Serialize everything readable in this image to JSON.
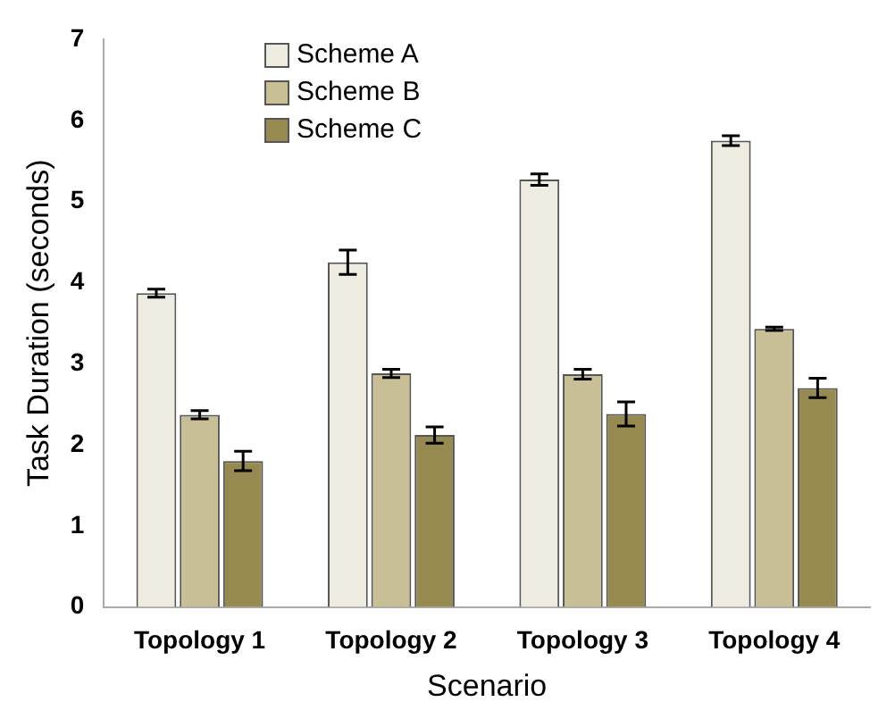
{
  "chart_data": {
    "type": "bar",
    "xlabel": "Scenario",
    "ylabel": "Task Duration (seconds)",
    "categories": [
      "Topology 1",
      "Topology 2",
      "Topology 3",
      "Topology 4"
    ],
    "series": [
      {
        "name": "Scheme A",
        "color": "#eeebe0",
        "values": [
          3.87,
          4.25,
          5.27,
          5.75
        ],
        "errors": [
          0.05,
          0.15,
          0.07,
          0.06
        ]
      },
      {
        "name": "Scheme B",
        "color": "#c8bf96",
        "values": [
          2.37,
          2.88,
          2.87,
          3.43
        ],
        "errors": [
          0.05,
          0.05,
          0.06,
          0.02
        ]
      },
      {
        "name": "Scheme C",
        "color": "#968a50",
        "values": [
          1.8,
          2.12,
          2.38,
          2.7
        ],
        "errors": [
          0.12,
          0.1,
          0.15,
          0.12
        ]
      }
    ],
    "ylim": [
      0,
      7
    ],
    "yticks": [
      0,
      1,
      2,
      3,
      4,
      5,
      6,
      7
    ],
    "grid": false,
    "legend": "top left"
  }
}
